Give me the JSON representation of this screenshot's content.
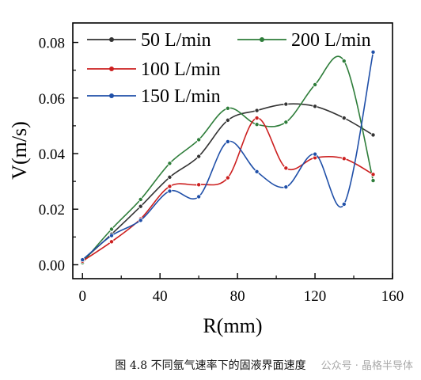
{
  "chart_data": {
    "type": "line",
    "xlabel": "R(mm)",
    "ylabel": "V(m/s)",
    "xlim": [
      -5,
      160
    ],
    "ylim": [
      -0.005,
      0.087
    ],
    "xticks": [
      "0",
      "40",
      "80",
      "120",
      "160"
    ],
    "yticks": [
      "0.00",
      "0.02",
      "0.04",
      "0.06",
      "0.08"
    ],
    "legend_position": "top",
    "x": [
      0,
      15,
      30,
      45,
      60,
      75,
      90,
      105,
      120,
      135,
      150
    ],
    "series": [
      {
        "name": "50 L/min",
        "color": "#333333",
        "values": [
          0.0015,
          0.011,
          0.021,
          0.0315,
          0.039,
          0.052,
          0.0555,
          0.0578,
          0.057,
          0.0528,
          0.0467
        ]
      },
      {
        "name": "200 L/min",
        "color": "#2e7d3a",
        "values": [
          0.0008,
          0.0128,
          0.0235,
          0.0365,
          0.045,
          0.0563,
          0.0505,
          0.0513,
          0.0648,
          0.0733,
          0.0303
        ]
      },
      {
        "name": "100 L/min",
        "color": "#cc1f1f",
        "values": [
          0.0013,
          0.0083,
          0.0165,
          0.0282,
          0.0288,
          0.0313,
          0.0528,
          0.0348,
          0.0385,
          0.0382,
          0.0325
        ]
      },
      {
        "name": "150 L/min",
        "color": "#1f4fa8",
        "values": [
          0.0018,
          0.0105,
          0.016,
          0.0265,
          0.0245,
          0.0443,
          0.0335,
          0.028,
          0.0398,
          0.0218,
          0.0765
        ]
      }
    ]
  },
  "caption": "图 4.8 不同氩气速率下的固液界面速度",
  "watermark": "公众号 · 晶格半导体"
}
